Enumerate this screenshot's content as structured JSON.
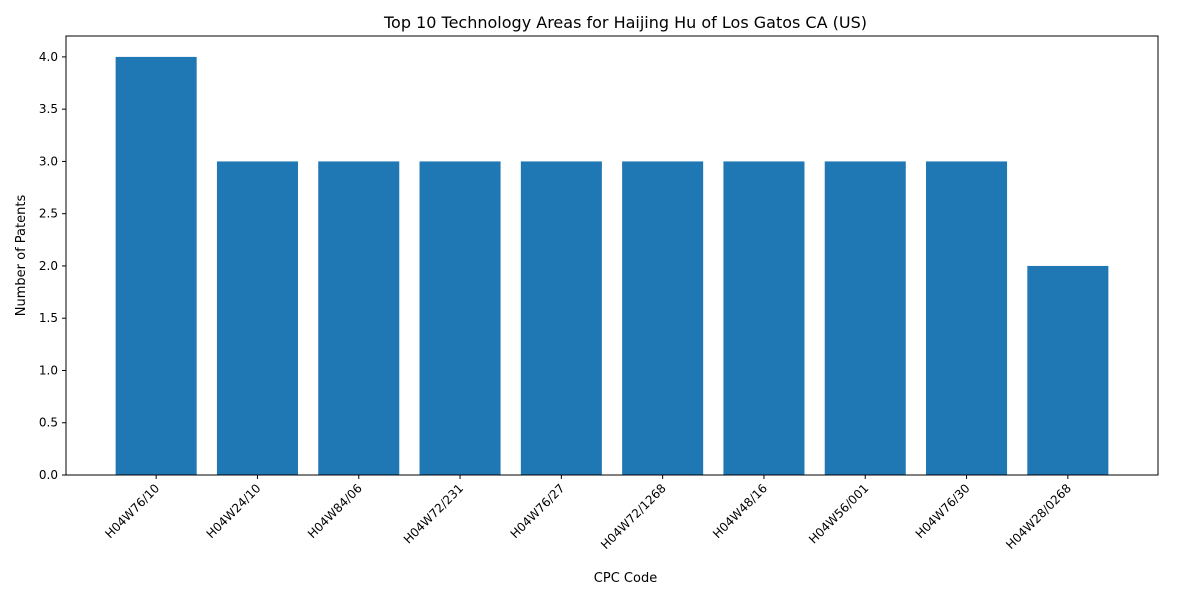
{
  "chart_data": {
    "type": "bar",
    "title": "Top 10 Technology Areas for Haijing Hu of Los Gatos CA (US)",
    "xlabel": "CPC Code",
    "ylabel": "Number of Patents",
    "categories": [
      "H04W76/10",
      "H04W24/10",
      "H04W84/06",
      "H04W72/231",
      "H04W76/27",
      "H04W72/1268",
      "H04W48/16",
      "H04W56/001",
      "H04W76/30",
      "H04W28/0268"
    ],
    "values": [
      4,
      3,
      3,
      3,
      3,
      3,
      3,
      3,
      3,
      2
    ],
    "ylim": [
      0,
      4.2
    ],
    "yticks": [
      "0.0",
      "0.5",
      "1.0",
      "1.5",
      "2.0",
      "2.5",
      "3.0",
      "3.5",
      "4.0"
    ],
    "grid": false,
    "bar_color": "#1f77b4"
  }
}
